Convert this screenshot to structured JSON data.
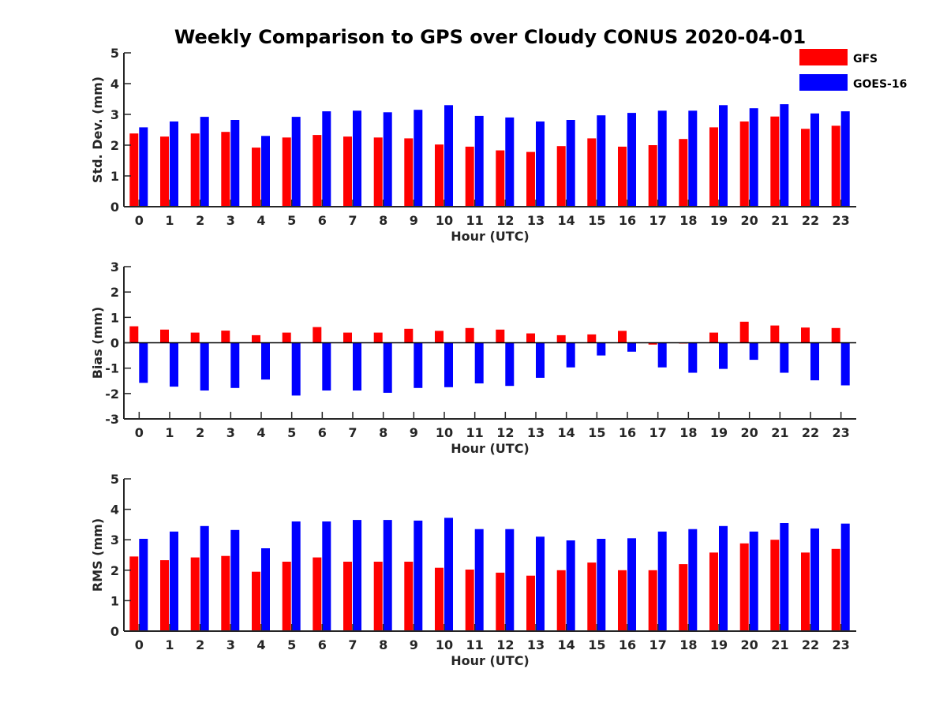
{
  "colors": {
    "gfs": "#ff0000",
    "goes": "#0000ff",
    "axis": "#262626"
  },
  "chart_data": [
    {
      "type": "bar",
      "title": "Weekly Comparison to GPS over Cloudy CONUS 2020-04-01",
      "xlabel": "Hour (UTC)",
      "ylabel": "Std. Dev. (mm)",
      "ylim": [
        0,
        5
      ],
      "yticks": [
        "0",
        "1",
        "2",
        "3",
        "4",
        "5"
      ],
      "categories": [
        "0",
        "1",
        "2",
        "3",
        "4",
        "5",
        "6",
        "7",
        "8",
        "9",
        "10",
        "11",
        "12",
        "13",
        "14",
        "15",
        "16",
        "17",
        "18",
        "19",
        "20",
        "21",
        "22",
        "23"
      ],
      "series": [
        {
          "name": "GFS",
          "values": [
            2.38,
            2.28,
            2.38,
            2.43,
            1.92,
            2.25,
            2.33,
            2.28,
            2.25,
            2.22,
            2.02,
            1.95,
            1.83,
            1.78,
            1.97,
            2.22,
            1.95,
            2.0,
            2.2,
            2.58,
            2.77,
            2.93,
            2.53,
            2.63
          ]
        },
        {
          "name": "GOES-16",
          "values": [
            2.58,
            2.77,
            2.92,
            2.82,
            2.3,
            2.92,
            3.1,
            3.12,
            3.07,
            3.15,
            3.3,
            2.95,
            2.9,
            2.77,
            2.82,
            2.97,
            3.05,
            3.12,
            3.12,
            3.3,
            3.2,
            3.33,
            3.03,
            3.1
          ]
        }
      ],
      "legend": "top-right",
      "grid": false
    },
    {
      "type": "bar",
      "xlabel": "Hour (UTC)",
      "ylabel": "Bias (mm)",
      "ylim": [
        -3,
        3
      ],
      "yticks": [
        "-3",
        "-2",
        "-1",
        "0",
        "1",
        "2",
        "3"
      ],
      "categories": [
        "0",
        "1",
        "2",
        "3",
        "4",
        "5",
        "6",
        "7",
        "8",
        "9",
        "10",
        "11",
        "12",
        "13",
        "14",
        "15",
        "16",
        "17",
        "18",
        "19",
        "20",
        "21",
        "22",
        "23"
      ],
      "series": [
        {
          "name": "GFS",
          "values": [
            0.65,
            0.52,
            0.4,
            0.48,
            0.3,
            0.4,
            0.62,
            0.4,
            0.4,
            0.55,
            0.47,
            0.58,
            0.52,
            0.37,
            0.3,
            0.33,
            0.47,
            -0.07,
            -0.03,
            0.4,
            0.83,
            0.68,
            0.6,
            0.58
          ]
        },
        {
          "name": "GOES-16",
          "values": [
            -1.58,
            -1.73,
            -1.88,
            -1.78,
            -1.45,
            -2.08,
            -1.88,
            -1.88,
            -1.97,
            -1.78,
            -1.75,
            -1.6,
            -1.7,
            -1.38,
            -0.97,
            -0.5,
            -0.35,
            -0.97,
            -1.18,
            -1.03,
            -0.67,
            -1.18,
            -1.48,
            -1.68
          ]
        }
      ],
      "grid": false
    },
    {
      "type": "bar",
      "xlabel": "Hour (UTC)",
      "ylabel": "RMS (mm)",
      "ylim": [
        0,
        5
      ],
      "yticks": [
        "0",
        "1",
        "2",
        "3",
        "4",
        "5"
      ],
      "categories": [
        "0",
        "1",
        "2",
        "3",
        "4",
        "5",
        "6",
        "7",
        "8",
        "9",
        "10",
        "11",
        "12",
        "13",
        "14",
        "15",
        "16",
        "17",
        "18",
        "19",
        "20",
        "21",
        "22",
        "23"
      ],
      "series": [
        {
          "name": "GFS",
          "values": [
            2.45,
            2.33,
            2.42,
            2.47,
            1.95,
            2.28,
            2.42,
            2.28,
            2.28,
            2.28,
            2.08,
            2.02,
            1.92,
            1.82,
            2.0,
            2.25,
            2.0,
            2.0,
            2.2,
            2.58,
            2.88,
            3.0,
            2.58,
            2.7
          ]
        },
        {
          "name": "GOES-16",
          "values": [
            3.03,
            3.27,
            3.45,
            3.32,
            2.72,
            3.6,
            3.6,
            3.65,
            3.65,
            3.63,
            3.72,
            3.35,
            3.35,
            3.1,
            2.98,
            3.03,
            3.05,
            3.27,
            3.35,
            3.45,
            3.27,
            3.55,
            3.37,
            3.53
          ]
        }
      ],
      "grid": false
    }
  ]
}
